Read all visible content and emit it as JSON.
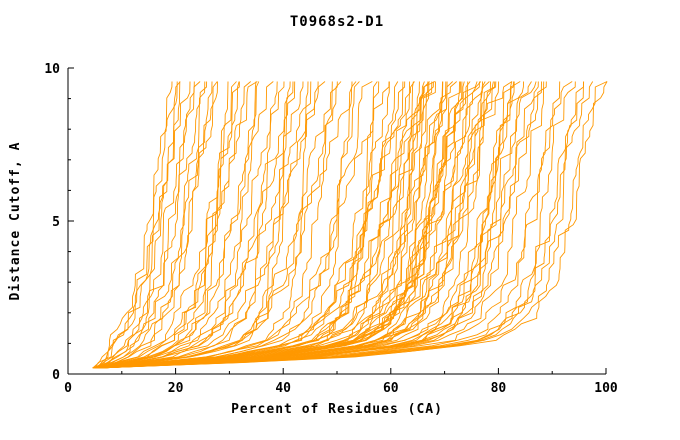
{
  "title": "T0968s2-D1",
  "chart_data": {
    "type": "line",
    "title": "T0968s2-D1",
    "xlabel": "Percent of Residues (CA)",
    "ylabel": "Distance Cutoff, A",
    "xlim": [
      0,
      100
    ],
    "ylim": [
      0,
      10
    ],
    "x_ticks": [
      0,
      20,
      40,
      60,
      80,
      100
    ],
    "x_minor_ticks": [
      10,
      30,
      50,
      70,
      90
    ],
    "y_ticks": [
      0,
      5,
      10
    ],
    "y_minor_ticks": [
      1,
      2,
      3,
      4,
      6,
      7,
      8,
      9
    ],
    "grid": false,
    "legend": "none",
    "curve_color": "#ff9800",
    "axis_color": "#000000",
    "n_curves": 100,
    "description": "Family of ~100 monotonically increasing jagged model-accuracy curves (distance cutoff vs percent of CA residues), fanning from a common origin near x=5,y=0.2 up to y=9.65; best curve reaches the top near x=19, worst near x=100.",
    "curve_gen": {
      "y_start": 0.2,
      "y_end": 9.65,
      "y_step": 0.18,
      "jitter": 2.4,
      "x_max": 100.2,
      "envelope_best": {
        "y": [
          0.2,
          0.5,
          1.0,
          1.5,
          2.0,
          3.0,
          4.0,
          5.0,
          6.0,
          7.0,
          8.0,
          9.0,
          9.65
        ],
        "x": [
          5.0,
          6.5,
          8.0,
          9.5,
          10.5,
          12.0,
          13.0,
          14.0,
          15.0,
          16.0,
          17.0,
          18.0,
          18.5
        ]
      },
      "envelope_worst": {
        "y": [
          0.2,
          0.5,
          1.0,
          1.5,
          2.0,
          3.0,
          4.0,
          5.0,
          6.0,
          7.0,
          8.0,
          9.0,
          9.65
        ],
        "x": [
          6.0,
          50.0,
          78.0,
          84.0,
          87.0,
          90.0,
          91.5,
          93.0,
          94.0,
          95.0,
          96.5,
          98.0,
          100.0
        ]
      }
    }
  }
}
